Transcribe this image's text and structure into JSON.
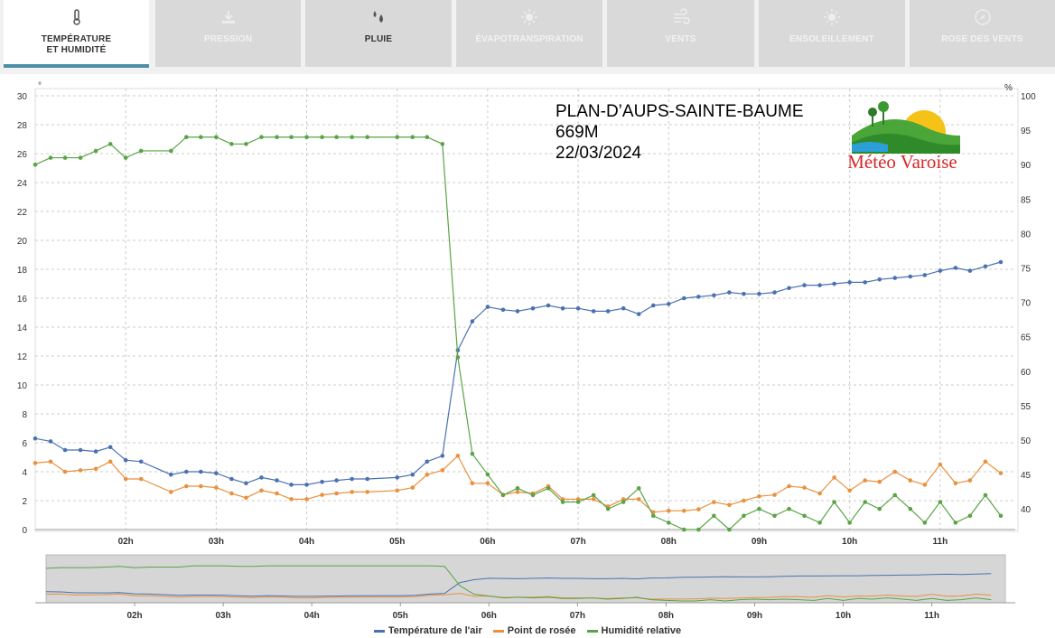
{
  "tabs": [
    {
      "label": "TEMPÉRATURE\nET HUMIDITÉ",
      "icon": "thermometer-icon",
      "state": "active"
    },
    {
      "label": "PRESSION",
      "icon": "pressure-icon",
      "state": "disabled"
    },
    {
      "label": "PLUIE",
      "icon": "rain-drops-icon",
      "state": "enabled"
    },
    {
      "label": "ÉVAPOTRANSPIRATION",
      "icon": "sun-icon",
      "state": "disabled"
    },
    {
      "label": "VENTS",
      "icon": "wind-icon",
      "state": "disabled"
    },
    {
      "label": "ENSOLEILLEMENT",
      "icon": "sun-icon",
      "state": "disabled"
    },
    {
      "label": "ROSE DES VENTS",
      "icon": "compass-icon",
      "state": "disabled"
    }
  ],
  "station": {
    "name": "PLAN-D’AUPS-SAINTE-BAUME",
    "altitude": "669M",
    "date": "22/03/2024"
  },
  "logo": {
    "text": "Météo Varoise"
  },
  "chart_data": {
    "type": "line",
    "left_axis": {
      "unit": "°",
      "min": 0,
      "max": 30,
      "ticks": [
        0,
        2,
        4,
        6,
        8,
        10,
        12,
        14,
        16,
        18,
        20,
        22,
        24,
        26,
        28,
        30
      ]
    },
    "right_axis": {
      "unit": "%",
      "min": 37,
      "max": 100,
      "ticks": [
        40,
        45,
        50,
        55,
        60,
        65,
        70,
        75,
        80,
        85,
        90,
        95,
        100
      ]
    },
    "x": {
      "start_hour": 1.0,
      "end_hour": 11.83,
      "labels": [
        "02h",
        "03h",
        "04h",
        "05h",
        "06h",
        "07h",
        "08h",
        "09h",
        "10h",
        "11h"
      ],
      "label_hours": [
        2,
        3,
        4,
        5,
        6,
        7,
        8,
        9,
        10,
        11
      ]
    },
    "grid": true,
    "legend_position": "bottom",
    "colors": {
      "temperature": "#4a72b0",
      "dew_point": "#e8913f",
      "humidity": "#5aa446"
    },
    "series": [
      {
        "name": "Température de l'air",
        "axis": "left",
        "x": [
          1.0,
          1.17,
          1.33,
          1.5,
          1.67,
          1.83,
          2.0,
          2.17,
          2.5,
          2.67,
          2.83,
          3.0,
          3.17,
          3.33,
          3.5,
          3.67,
          3.83,
          4.0,
          4.17,
          4.33,
          4.5,
          4.67,
          5.0,
          5.17,
          5.33,
          5.5,
          5.67,
          5.83,
          6.0,
          6.17,
          6.33,
          6.5,
          6.67,
          6.83,
          7.0,
          7.17,
          7.33,
          7.5,
          7.67,
          7.83,
          8.0,
          8.17,
          8.33,
          8.5,
          8.67,
          8.83,
          9.0,
          9.17,
          9.33,
          9.5,
          9.67,
          9.83,
          10.0,
          10.17,
          10.33,
          10.5,
          10.67,
          10.83,
          11.0,
          11.17,
          11.33,
          11.5,
          11.67
        ],
        "values": [
          6.3,
          6.1,
          5.5,
          5.5,
          5.4,
          5.7,
          4.8,
          4.7,
          3.8,
          4.0,
          4.0,
          3.9,
          3.5,
          3.2,
          3.6,
          3.4,
          3.1,
          3.1,
          3.3,
          3.4,
          3.5,
          3.5,
          3.6,
          3.8,
          4.7,
          5.1,
          12.4,
          14.4,
          15.4,
          15.2,
          15.1,
          15.3,
          15.5,
          15.3,
          15.3,
          15.1,
          15.1,
          15.3,
          14.9,
          15.5,
          15.6,
          16.0,
          16.1,
          16.2,
          16.4,
          16.3,
          16.3,
          16.4,
          16.7,
          16.9,
          16.9,
          17.0,
          17.1,
          17.1,
          17.3,
          17.4,
          17.5,
          17.6,
          17.9,
          18.1,
          17.9,
          18.2,
          18.5
        ]
      },
      {
        "name": "Point de rosée",
        "axis": "left",
        "x": [
          1.0,
          1.17,
          1.33,
          1.5,
          1.67,
          1.83,
          2.0,
          2.17,
          2.5,
          2.67,
          2.83,
          3.0,
          3.17,
          3.33,
          3.5,
          3.67,
          3.83,
          4.0,
          4.17,
          4.33,
          4.5,
          4.67,
          5.0,
          5.17,
          5.33,
          5.5,
          5.67,
          5.83,
          6.0,
          6.17,
          6.33,
          6.5,
          6.67,
          6.83,
          7.0,
          7.17,
          7.33,
          7.5,
          7.67,
          7.83,
          8.0,
          8.17,
          8.33,
          8.5,
          8.67,
          8.83,
          9.0,
          9.17,
          9.33,
          9.5,
          9.67,
          9.83,
          10.0,
          10.17,
          10.33,
          10.5,
          10.67,
          10.83,
          11.0,
          11.17,
          11.33,
          11.5,
          11.67
        ],
        "values": [
          4.6,
          4.7,
          4.0,
          4.1,
          4.2,
          4.7,
          3.5,
          3.5,
          2.6,
          3.0,
          3.0,
          2.9,
          2.5,
          2.2,
          2.7,
          2.5,
          2.1,
          2.1,
          2.4,
          2.5,
          2.6,
          2.6,
          2.7,
          2.9,
          3.8,
          4.1,
          5.1,
          3.2,
          3.2,
          2.4,
          2.6,
          2.5,
          3.0,
          2.1,
          2.1,
          2.1,
          1.6,
          2.1,
          2.1,
          1.2,
          1.3,
          1.3,
          1.4,
          1.9,
          1.7,
          2.0,
          2.3,
          2.4,
          3.0,
          2.9,
          2.5,
          3.6,
          2.7,
          3.4,
          3.3,
          4.0,
          3.4,
          3.1,
          4.5,
          3.2,
          3.4,
          4.7,
          3.9
        ]
      },
      {
        "name": "Humidité relative",
        "axis": "right",
        "x": [
          1.0,
          1.17,
          1.33,
          1.5,
          1.67,
          1.83,
          2.0,
          2.17,
          2.5,
          2.67,
          2.83,
          3.0,
          3.17,
          3.33,
          3.5,
          3.67,
          3.83,
          4.0,
          4.17,
          4.33,
          4.5,
          4.67,
          5.0,
          5.17,
          5.33,
          5.5,
          5.67,
          5.83,
          6.0,
          6.17,
          6.33,
          6.5,
          6.67,
          6.83,
          7.0,
          7.17,
          7.33,
          7.5,
          7.67,
          7.83,
          8.0,
          8.17,
          8.33,
          8.5,
          8.67,
          8.83,
          9.0,
          9.17,
          9.33,
          9.5,
          9.67,
          9.83,
          10.0,
          10.17,
          10.33,
          10.5,
          10.67,
          10.83,
          11.0,
          11.17,
          11.33,
          11.5,
          11.67
        ],
        "values": [
          90,
          91,
          91,
          91,
          92,
          93,
          91,
          92,
          92,
          94,
          94,
          94,
          93,
          93,
          94,
          94,
          94,
          94,
          94,
          94,
          94,
          94,
          94,
          94,
          94,
          93,
          62,
          48,
          45,
          42,
          43,
          42,
          43,
          41,
          41,
          42,
          40,
          41,
          43,
          39,
          38,
          37,
          37,
          39,
          37,
          39,
          40,
          39,
          40,
          39,
          38,
          41,
          38,
          41,
          40,
          42,
          40,
          38,
          41,
          38,
          39,
          42,
          39
        ]
      }
    ]
  }
}
